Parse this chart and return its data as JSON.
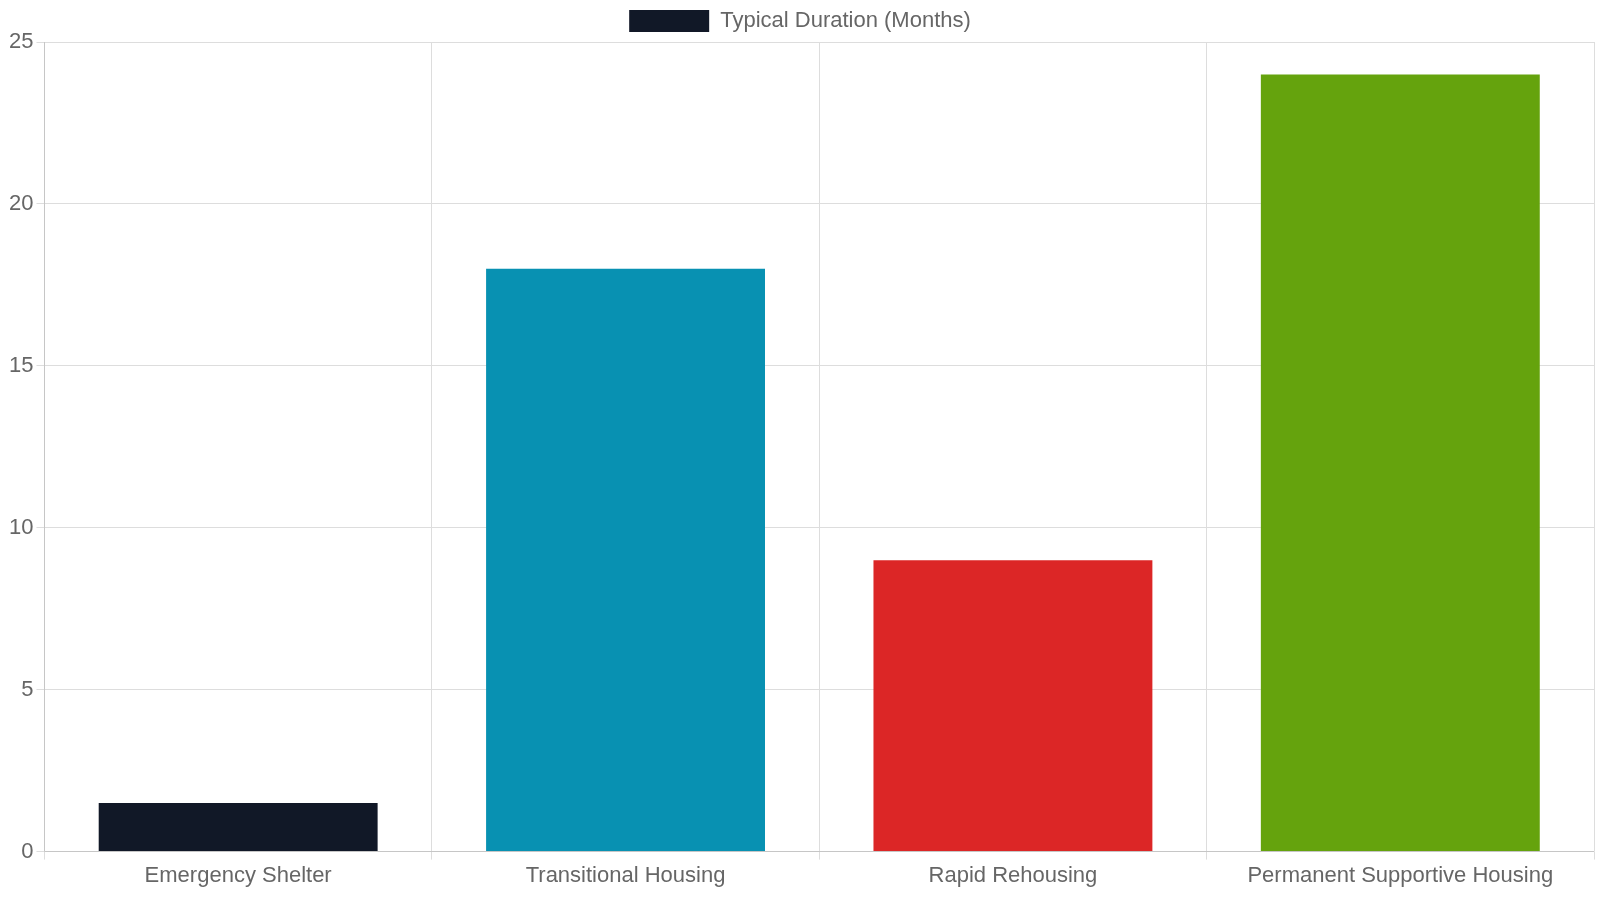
{
  "chart_data": {
    "type": "bar",
    "categories": [
      "Emergency Shelter",
      "Transitional Housing",
      "Rapid Rehousing",
      "Permanent Supportive Housing"
    ],
    "series": [
      {
        "name": "Typical Duration (Months)",
        "colors": [
          "#111827",
          "#0891b2",
          "#dc2626",
          "#65a30d"
        ],
        "values": [
          1.5,
          18,
          9,
          24
        ]
      }
    ],
    "ylim": [
      0,
      25
    ],
    "yticks": [
      0,
      5,
      10,
      15,
      20,
      25
    ],
    "grid": true,
    "legend": "top"
  }
}
